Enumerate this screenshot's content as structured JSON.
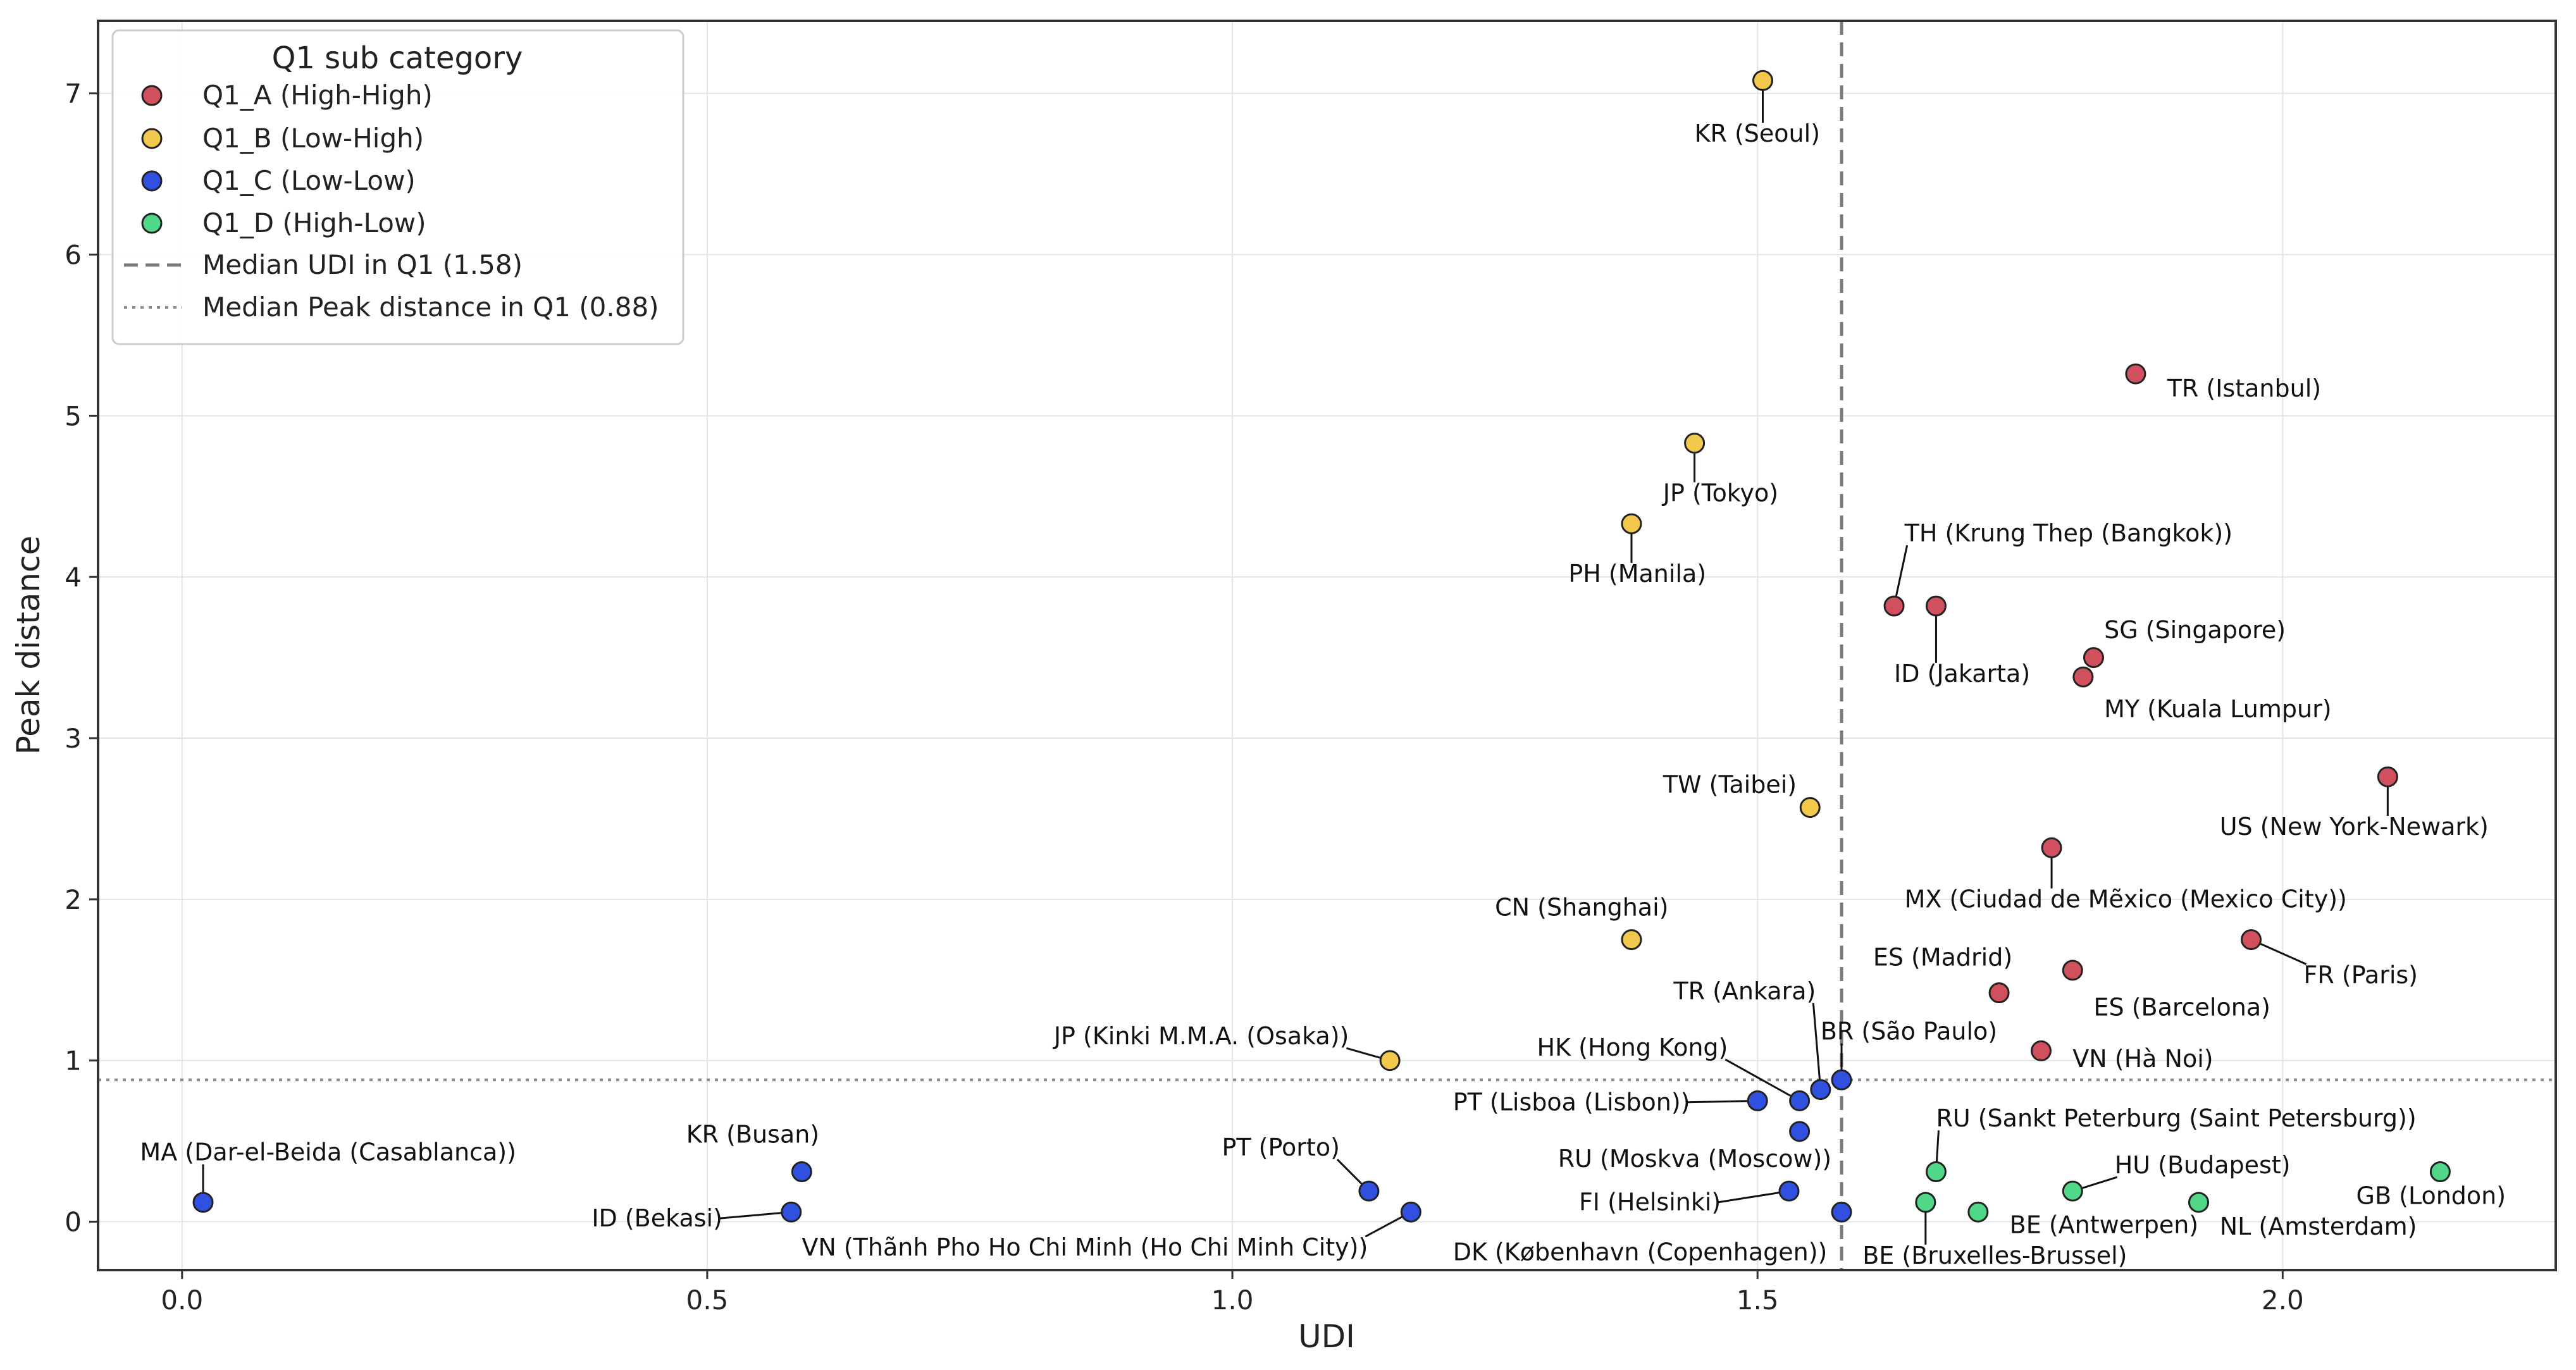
{
  "chart_data": {
    "type": "scatter",
    "xlabel": "UDI",
    "ylabel": "Peak distance",
    "xlim": [
      -0.08,
      2.26
    ],
    "ylim": [
      -0.3,
      7.45
    ],
    "x_ticks": [
      0.0,
      0.5,
      1.0,
      1.5,
      2.0
    ],
    "x_tick_labels": [
      "0.0",
      "0.5",
      "1.0",
      "1.5",
      "2.0"
    ],
    "y_ticks": [
      0,
      1,
      2,
      3,
      4,
      5,
      6,
      7
    ],
    "y_tick_labels": [
      "0",
      "1",
      "2",
      "3",
      "4",
      "5",
      "6",
      "7"
    ],
    "grid": true,
    "legend_placement": "top-left",
    "legend_title": "Q1 sub category",
    "median_udi": {
      "label": "Median UDI in Q1 (1.58)",
      "value": 1.58,
      "style": "dashed",
      "color": "#7a7a7a"
    },
    "median_peak": {
      "label": "Median Peak distance in Q1 (0.88)",
      "value": 0.88,
      "style": "dotted",
      "color": "#8a8a8a"
    },
    "series": [
      {
        "name": "Q1_A (High-High)",
        "color": "#d0505e",
        "points": [
          {
            "x": 1.86,
            "y": 5.26,
            "label": "TR (Istanbul)",
            "lx": 1.89,
            "ly": 5.12
          },
          {
            "x": 1.63,
            "y": 3.82,
            "label": "TH (Krung Thep (Bangkok))",
            "lx": 1.64,
            "ly": 4.22
          },
          {
            "x": 1.67,
            "y": 3.82,
            "label": "ID (Jakarta)",
            "lx": 1.63,
            "ly": 3.35
          },
          {
            "x": 1.82,
            "y": 3.5,
            "label": "SG (Singapore)",
            "lx": 1.83,
            "ly": 3.62
          },
          {
            "x": 1.81,
            "y": 3.38,
            "label": "MY (Kuala Lumpur)",
            "lx": 1.83,
            "ly": 3.13
          },
          {
            "x": 2.1,
            "y": 2.76,
            "label": "US (New York-Newark)",
            "lx": 1.94,
            "ly": 2.4
          },
          {
            "x": 1.78,
            "y": 2.32,
            "label": "MX (Ciudad de Mẽxico (Mexico City))",
            "lx": 1.64,
            "ly": 1.95
          },
          {
            "x": 1.97,
            "y": 1.75,
            "label": "FR (Paris)",
            "lx": 2.02,
            "ly": 1.48
          },
          {
            "x": 1.73,
            "y": 1.42,
            "label": "ES (Madrid)",
            "lx": 1.61,
            "ly": 1.59
          },
          {
            "x": 1.8,
            "y": 1.56,
            "label": "ES (Barcelona)",
            "lx": 1.82,
            "ly": 1.28
          },
          {
            "x": 1.77,
            "y": 1.06,
            "label": "VN (Hà Noi)",
            "lx": 1.8,
            "ly": 0.96
          }
        ]
      },
      {
        "name": "Q1_B (Low-High)",
        "color": "#f2c94c",
        "points": [
          {
            "x": 1.505,
            "y": 7.08,
            "label": "KR (Seoul)",
            "lx": 1.44,
            "ly": 6.7
          },
          {
            "x": 1.44,
            "y": 4.83,
            "label": "JP (Tokyo)",
            "lx": 1.41,
            "ly": 4.47
          },
          {
            "x": 1.38,
            "y": 4.33,
            "label": "PH (Manila)",
            "lx": 1.32,
            "ly": 3.97
          },
          {
            "x": 1.55,
            "y": 2.57,
            "label": "TW (Taibei)",
            "lx": 1.41,
            "ly": 2.66
          },
          {
            "x": 1.38,
            "y": 1.75,
            "label": "CN (Shanghai)",
            "lx": 1.25,
            "ly": 1.9
          },
          {
            "x": 1.15,
            "y": 1.0,
            "label": "JP (Kinki M.M.A. (Osaka))",
            "lx": 0.83,
            "ly": 1.1
          }
        ]
      },
      {
        "name": "Q1_C (Low-Low)",
        "color": "#3050e0",
        "points": [
          {
            "x": 0.02,
            "y": 0.12,
            "label": "MA (Dar-el-Beida (Casablanca))",
            "lx": -0.04,
            "ly": 0.38
          },
          {
            "x": 0.59,
            "y": 0.31,
            "label": "KR (Busan)",
            "lx": 0.48,
            "ly": 0.49
          },
          {
            "x": 0.58,
            "y": 0.06,
            "label": "ID (Bekasi)",
            "lx": 0.39,
            "ly": -0.03
          },
          {
            "x": 1.13,
            "y": 0.19,
            "label": "PT (Porto)",
            "lx": 0.99,
            "ly": 0.41
          },
          {
            "x": 1.17,
            "y": 0.06,
            "label": "VN (Thãnh  Pho Ho Chi Minh (Ho Chi Minh City))",
            "lx": 0.59,
            "ly": -0.21
          },
          {
            "x": 1.5,
            "y": 0.75,
            "label": "PT (Lisboa (Lisbon))",
            "lx": 1.21,
            "ly": 0.69
          },
          {
            "x": 1.54,
            "y": 0.75,
            "label": "HK (Hong Kong)",
            "lx": 1.29,
            "ly": 1.03
          },
          {
            "x": 1.56,
            "y": 0.82,
            "label": "TR (Ankara)",
            "lx": 1.42,
            "ly": 1.38
          },
          {
            "x": 1.58,
            "y": 0.88,
            "label": "BR (São Paulo)",
            "lx": 1.56,
            "ly": 1.13
          },
          {
            "x": 1.54,
            "y": 0.56,
            "label": "RU (Moskva (Moscow))",
            "lx": 1.31,
            "ly": 0.34
          },
          {
            "x": 1.53,
            "y": 0.19,
            "label": "FI (Helsinki)",
            "lx": 1.33,
            "ly": 0.07
          },
          {
            "x": 1.58,
            "y": 0.06,
            "label": "DK (København  (Copenhagen))",
            "lx": 1.21,
            "ly": -0.24
          }
        ]
      },
      {
        "name": "Q1_D (High-Low)",
        "color": "#50d888",
        "points": [
          {
            "x": 1.67,
            "y": 0.31,
            "label": "RU (Sankt Peterburg (Saint Petersburg))",
            "lx": 1.67,
            "ly": 0.59
          },
          {
            "x": 1.66,
            "y": 0.12,
            "label": "BE (Bruxelles-Brussel)",
            "lx": 1.6,
            "ly": -0.26
          },
          {
            "x": 1.71,
            "y": 0.06,
            "label": "BE (Antwerpen)",
            "lx": 1.74,
            "ly": -0.07
          },
          {
            "x": 1.8,
            "y": 0.19,
            "label": "HU (Budapest)",
            "lx": 1.84,
            "ly": 0.3
          },
          {
            "x": 1.92,
            "y": 0.12,
            "label": "NL (Amsterdam)",
            "lx": 1.94,
            "ly": -0.08
          },
          {
            "x": 2.15,
            "y": 0.31,
            "label": "GB (London)",
            "lx": 2.07,
            "ly": 0.11
          }
        ]
      }
    ]
  }
}
